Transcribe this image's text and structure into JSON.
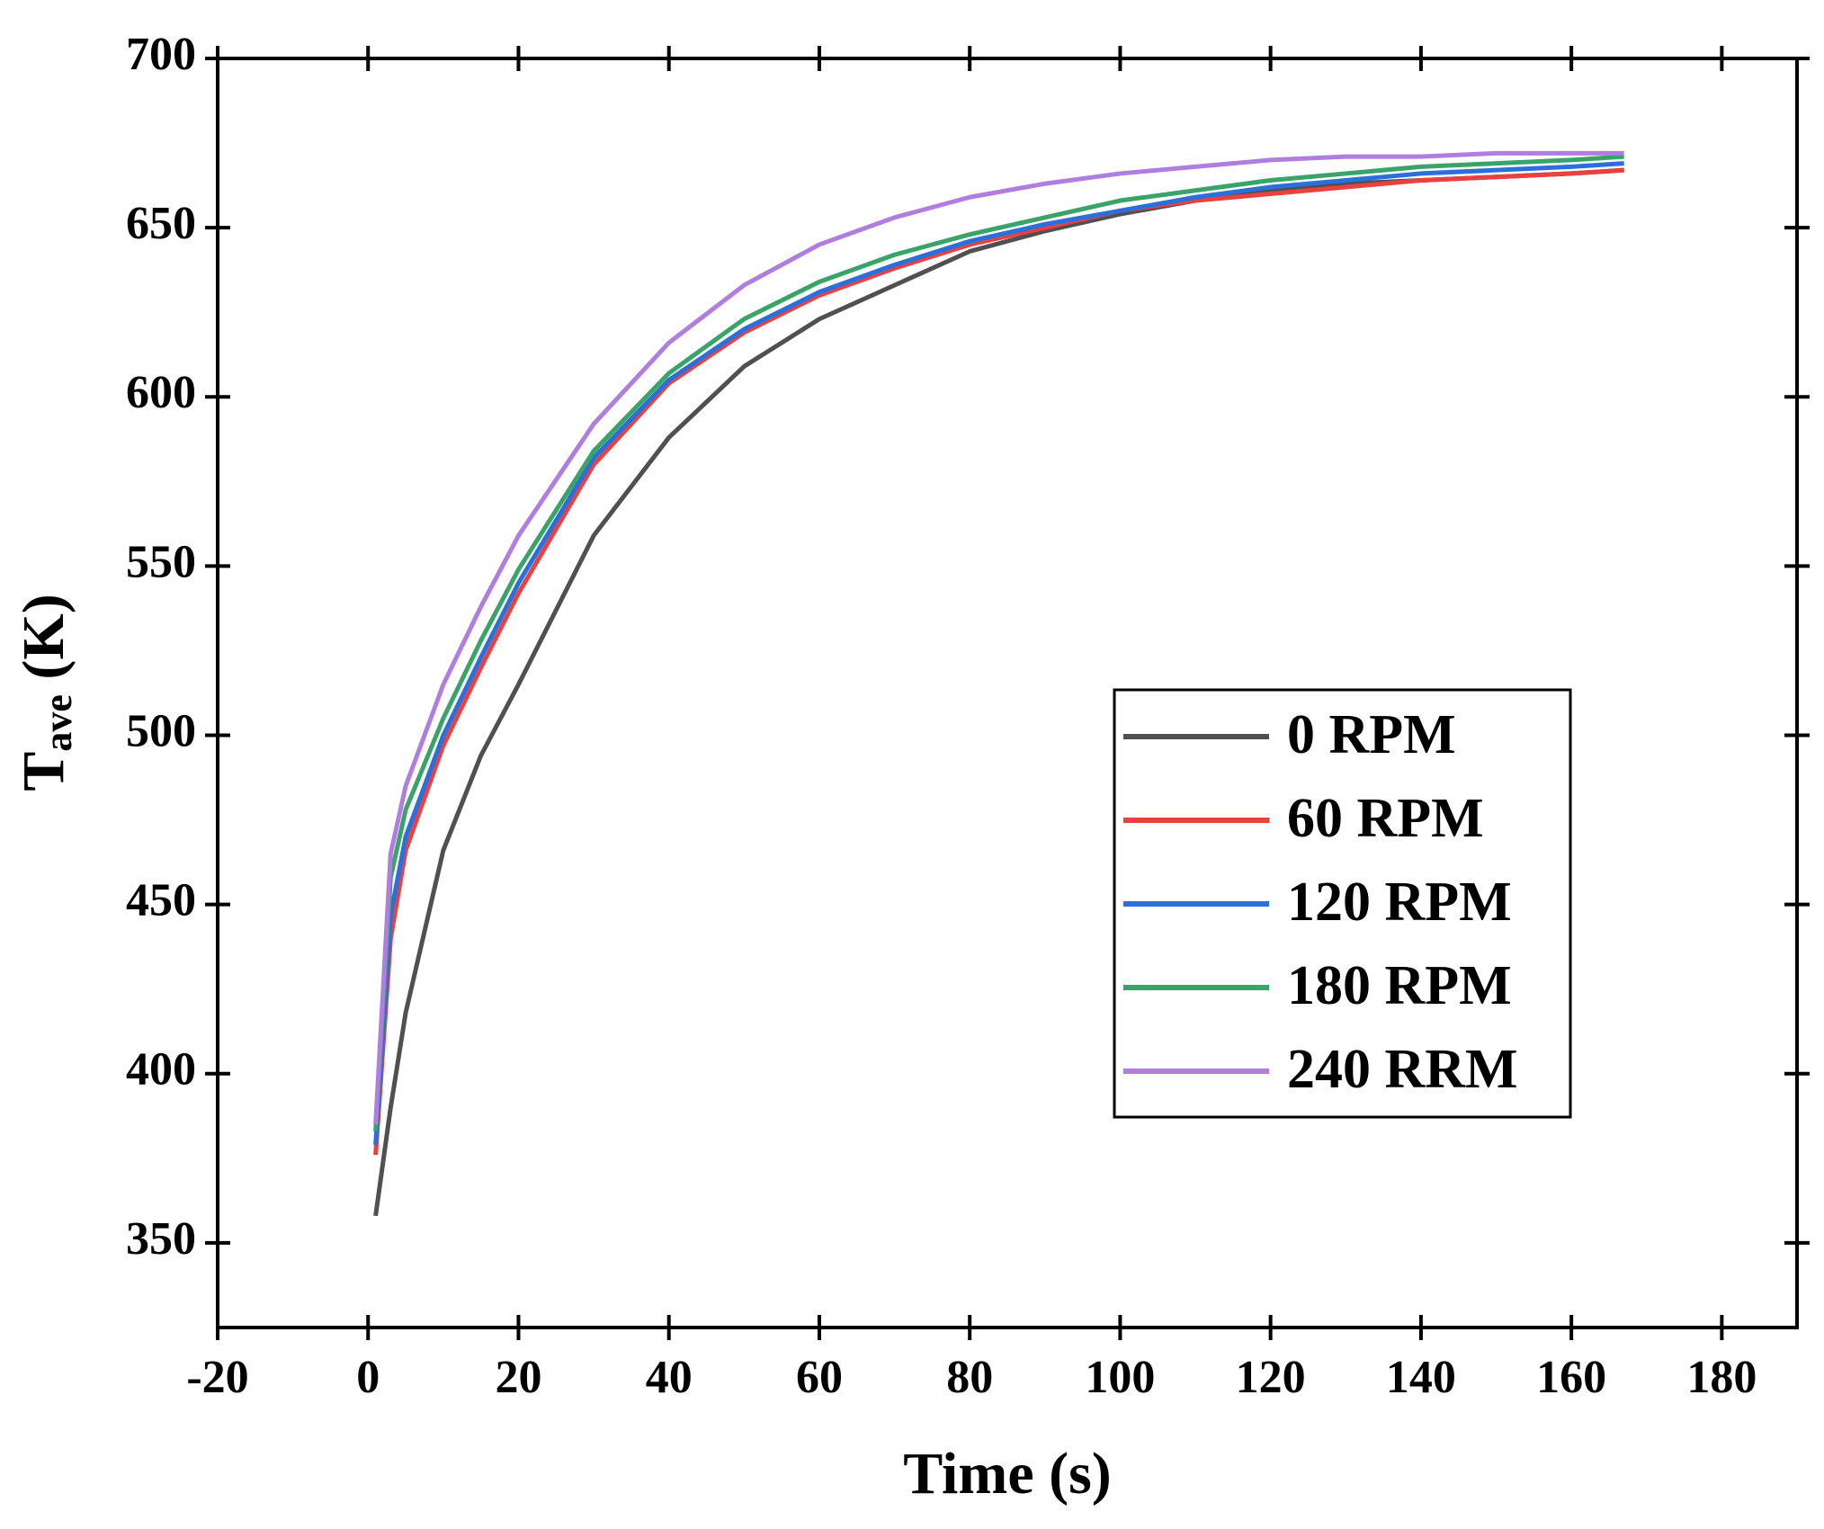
{
  "chart_data": {
    "type": "line",
    "x_label": "Time (s)",
    "y_label": "T",
    "y_label_subscript": "ave",
    "y_label_unit": " (K)",
    "x": [
      1,
      3,
      5,
      10,
      15,
      20,
      30,
      40,
      50,
      60,
      70,
      80,
      90,
      100,
      110,
      120,
      130,
      140,
      150,
      160,
      167
    ],
    "series": [
      {
        "name": "0 RPM",
        "color": "#505050",
        "values": [
          358,
          390,
          418,
          466,
          494,
          515,
          559,
          588,
          609,
          623,
          633,
          643,
          649,
          654,
          658,
          661,
          663,
          664,
          665,
          666,
          667
        ]
      },
      {
        "name": "60 RPM",
        "color": "#e8413f",
        "values": [
          376,
          440,
          466,
          497,
          520,
          542,
          580,
          604,
          619,
          630,
          638,
          645,
          650,
          655,
          658,
          660,
          662,
          664,
          665,
          666,
          667
        ]
      },
      {
        "name": "120 RPM",
        "color": "#2a6fdb",
        "values": [
          379,
          447,
          470,
          500,
          523,
          545,
          582,
          605,
          620,
          631,
          639,
          646,
          651,
          655,
          659,
          662,
          664,
          666,
          667,
          668,
          669
        ]
      },
      {
        "name": "180 RPM",
        "color": "#3aa36a",
        "values": [
          383,
          458,
          478,
          505,
          528,
          549,
          584,
          607,
          623,
          634,
          642,
          648,
          653,
          658,
          661,
          664,
          666,
          668,
          669,
          670,
          671
        ]
      },
      {
        "name": "240 RRM",
        "color": "#b07ee0",
        "values": [
          385,
          465,
          485,
          515,
          538,
          559,
          592,
          616,
          633,
          645,
          653,
          659,
          663,
          666,
          668,
          670,
          671,
          671,
          672,
          672,
          672
        ]
      }
    ],
    "xlim": [
      -20,
      190
    ],
    "xticks": [
      -20,
      0,
      20,
      40,
      60,
      80,
      100,
      120,
      140,
      160,
      180
    ],
    "ylim": [
      325,
      700
    ],
    "yticks": [
      350,
      400,
      450,
      500,
      550,
      600,
      650,
      700
    ],
    "grid": false,
    "legend": "lower right"
  }
}
